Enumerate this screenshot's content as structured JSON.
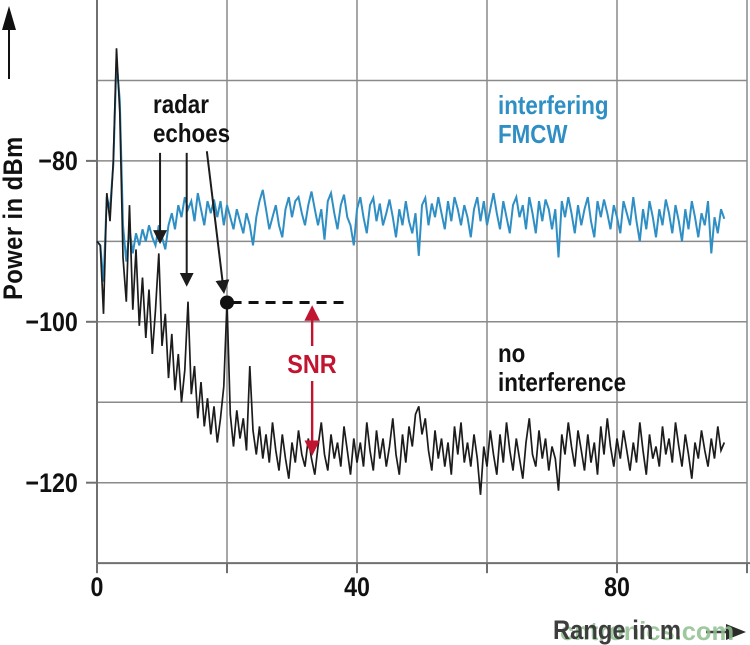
{
  "watermark": {
    "text": "cntronics.com",
    "color": "#8fbf8f"
  },
  "chart_data": {
    "type": "line",
    "title": "",
    "xlabel": "Range in m",
    "ylabel": "Power in dBm",
    "xlim": [
      0,
      100
    ],
    "ylim": [
      -130,
      -60
    ],
    "grid": true,
    "x_grid_step": 20,
    "y_grid_step": 10,
    "x_tick_values": [
      0,
      40,
      80
    ],
    "x_tick_labels": [
      "0",
      "40",
      "80"
    ],
    "y_tick_values": [
      -80,
      -100,
      -120
    ],
    "y_tick_labels": [
      "−80",
      "−100",
      "−120"
    ],
    "colors": {
      "grid": "#8a8a8a",
      "axis": "#707070",
      "black_trace": "#1c1c1c",
      "blue_trace": "#2f8fc5",
      "red": "#c01430"
    },
    "series": [
      {
        "name": "interfering FMCW",
        "color": "#2f8fc5",
        "x0": 0,
        "dx": 0.5,
        "values": [
          -90,
          -90.5,
          -95,
          -84.5,
          -86,
          -80.5,
          -67.5,
          -72.5,
          -88,
          -92.5,
          -88.5,
          -91.5,
          -89,
          -90.5,
          -88.5,
          -90,
          -88,
          -89.5,
          -90.5,
          -88,
          -89.5,
          -91,
          -88,
          -86.5,
          -88.5,
          -85.5,
          -87,
          -84.5,
          -86,
          -85,
          -87.5,
          -84,
          -86,
          -88,
          -85,
          -86.5,
          -84.8,
          -87,
          -85,
          -88,
          -85.5,
          -87,
          -88.5,
          -86,
          -87.5,
          -89,
          -86.5,
          -88,
          -90.5,
          -87,
          -85,
          -83.6,
          -86,
          -88.5,
          -87,
          -85.5,
          -88,
          -89.5,
          -86,
          -84.5,
          -87,
          -85,
          -84.5,
          -86.5,
          -88,
          -85.5,
          -83.8,
          -86,
          -88,
          -86,
          -89.8,
          -85,
          -84,
          -86.5,
          -88.5,
          -85.5,
          -84.2,
          -87,
          -88,
          -90.5,
          -86,
          -84.5,
          -87,
          -89,
          -85.5,
          -84.6,
          -87.5,
          -85.3,
          -88,
          -86.5,
          -84.8,
          -87,
          -89.5,
          -86,
          -88,
          -85,
          -87.5,
          -89,
          -86.5,
          -91.8,
          -85.5,
          -84.6,
          -88,
          -85.3,
          -87,
          -84.5,
          -86.5,
          -88.5,
          -85,
          -87.5,
          -84.5,
          -86,
          -88,
          -85.5,
          -87,
          -89.5,
          -86,
          -84.5,
          -87.5,
          -85,
          -88,
          -86,
          -84,
          -86.5,
          -88.5,
          -85,
          -87,
          -89,
          -85.5,
          -84.5,
          -87,
          -85.5,
          -88.5,
          -84.5,
          -86.5,
          -89,
          -85,
          -87.5,
          -84.8,
          -86,
          -88.5,
          -86,
          -92,
          -85,
          -87,
          -84.5,
          -86.5,
          -89,
          -85.5,
          -88,
          -86,
          -84.5,
          -87.5,
          -89.5,
          -85,
          -87,
          -84.8,
          -86.5,
          -88.5,
          -85.5,
          -87,
          -89,
          -85,
          -86.5,
          -88,
          -84.5,
          -87.5,
          -90,
          -86,
          -88.5,
          -85,
          -87,
          -89.5,
          -86,
          -88,
          -84.8,
          -86.5,
          -89,
          -85.5,
          -87.5,
          -90,
          -86,
          -88.5,
          -85,
          -87,
          -89.5,
          -86.5,
          -88,
          -85,
          -91.5,
          -87,
          -89,
          -86,
          -87.2
        ]
      },
      {
        "name": "no interference",
        "color": "#1c1c1c",
        "x0": 0,
        "dx": 0.5,
        "values": [
          -90,
          -90.5,
          -99,
          -84,
          -87.5,
          -80,
          -66,
          -74,
          -92,
          -97.5,
          -85.5,
          -98.5,
          -91,
          -100.5,
          -94.5,
          -102,
          -96,
          -104,
          -98.5,
          -91.5,
          -103,
          -99,
          -107,
          -101.5,
          -108.5,
          -104,
          -110,
          -106,
          -97.5,
          -109,
          -105.5,
          -112,
          -107.5,
          -113,
          -109.5,
          -114,
          -110.5,
          -115,
          -112,
          -108,
          -97.5,
          -111.5,
          -115.5,
          -111,
          -114.5,
          -112,
          -116,
          -105.5,
          -113.5,
          -116.5,
          -113,
          -117,
          -114,
          -117.5,
          -112.5,
          -116,
          -118.5,
          -114,
          -117,
          -119.5,
          -115,
          -117.5,
          -113.5,
          -116.5,
          -118,
          -114.5,
          -117,
          -119,
          -115.5,
          -112.5,
          -116.5,
          -118.5,
          -114,
          -117,
          -115,
          -118,
          -113,
          -116,
          -119,
          -114.5,
          -117.5,
          -115,
          -118,
          -112.5,
          -116,
          -118.5,
          -113.5,
          -117,
          -114.5,
          -118,
          -115.5,
          -112,
          -116.5,
          -119,
          -114,
          -117.5,
          -113,
          -115.5,
          -111.5,
          -110.5,
          -114,
          -112,
          -116,
          -118.5,
          -113.5,
          -117,
          -114.5,
          -118,
          -115,
          -119,
          -113,
          -116.5,
          -112.5,
          -117.5,
          -115,
          -118,
          -114,
          -117,
          -121.5,
          -115.5,
          -118,
          -113.5,
          -116.5,
          -119,
          -114,
          -117.5,
          -112.5,
          -116,
          -118.5,
          -114.5,
          -117,
          -119.5,
          -115,
          -112,
          -116.5,
          -118,
          -113.5,
          -117,
          -114.5,
          -118.5,
          -115.5,
          -117,
          -121,
          -114,
          -116.5,
          -112.5,
          -115.5,
          -118,
          -113.5,
          -116,
          -118.5,
          -114,
          -117.5,
          -115,
          -119,
          -113,
          -116.5,
          -112,
          -115.5,
          -118,
          -114.5,
          -117,
          -113.5,
          -116,
          -118.5,
          -115,
          -117.5,
          -112.5,
          -116,
          -119,
          -114,
          -117,
          -115.5,
          -118,
          -113,
          -116.5,
          -114.5,
          -117.5,
          -112.5,
          -115.5,
          -118,
          -114,
          -116.5,
          -119.5,
          -115,
          -117,
          -113.5,
          -116,
          -118,
          -114.5,
          -117,
          -113,
          -116,
          -115
        ]
      }
    ],
    "annotations": {
      "radar_echoes": {
        "line1": "radar",
        "line2": "echoes",
        "arrows": [
          {
            "from_x": 9.7,
            "from_y": -79,
            "to_x": 9.7,
            "to_y": -90.0
          },
          {
            "from_x": 13.8,
            "from_y": -79,
            "to_x": 13.8,
            "to_y": -95.3
          },
          {
            "from_x": 16.9,
            "from_y": -78.8,
            "to_x": 19.5,
            "to_y": -96.2
          }
        ]
      },
      "interfering": {
        "line1": "interfering",
        "line2": "FMCW",
        "color": "#2f8fc5"
      },
      "no_interference": {
        "line1": "no",
        "line2": "interference",
        "color": "#111111"
      },
      "snr": {
        "label": "SNR",
        "color": "#c01430",
        "x": 33.1,
        "y_top": -98.2,
        "y_bottom": -116.4
      },
      "marker_dot": {
        "x": 20,
        "y": -97.6
      },
      "dashed_line": {
        "y": -97.6,
        "x_from": 20.7,
        "x_to": 38.4
      }
    }
  }
}
